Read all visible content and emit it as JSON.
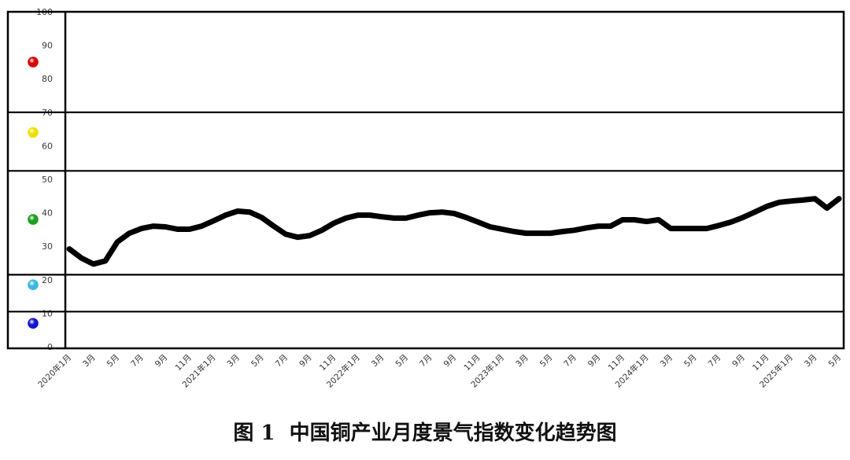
{
  "chart_data": {
    "type": "line",
    "title": "图 1  中国铜产业月度景气指数变化趋势图",
    "xlabel": "",
    "ylabel": "",
    "ylim": [
      0,
      100
    ],
    "y_ticks": [
      0,
      10,
      20,
      30,
      40,
      50,
      60,
      70,
      80,
      90,
      100
    ],
    "grid": false,
    "categories": [
      "2020年1月",
      "",
      "3月",
      "",
      "5月",
      "",
      "7月",
      "",
      "9月",
      "",
      "11月",
      "",
      "2021年1月",
      "",
      "3月",
      "",
      "5月",
      "",
      "7月",
      "",
      "9月",
      "",
      "11月",
      "",
      "2022年1月",
      "",
      "3月",
      "",
      "5月",
      "",
      "7月",
      "",
      "9月",
      "",
      "11月",
      "",
      "2023年1月",
      "",
      "3月",
      "",
      "5月",
      "",
      "7月",
      "",
      "9月",
      "",
      "11月",
      "",
      "2024年1月",
      "",
      "3月",
      "",
      "5月",
      "",
      "7月",
      "",
      "9月",
      "",
      "11月",
      "",
      "2025年1月",
      "",
      "3月",
      "",
      "5月"
    ],
    "series": [
      {
        "color": "#000000",
        "values": [
          29.2,
          26.5,
          24.7,
          25.6,
          31.3,
          33.9,
          35.3,
          36.0,
          35.8,
          35.1,
          35.1,
          36.0,
          37.6,
          39.3,
          40.5,
          40.2,
          38.6,
          36.0,
          33.6,
          32.7,
          33.2,
          34.8,
          36.9,
          38.4,
          39.3,
          39.3,
          38.8,
          38.4,
          38.4,
          39.3,
          40.0,
          40.2,
          39.8,
          38.6,
          37.2,
          35.8,
          35.1,
          34.4,
          33.9,
          33.9,
          33.9,
          34.4,
          34.8,
          35.5,
          36.0,
          36.0,
          37.9,
          37.9,
          37.4,
          37.9,
          35.3,
          35.3,
          35.3,
          35.3,
          36.2,
          37.2,
          38.6,
          40.2,
          41.9,
          43.1,
          43.5,
          43.8,
          44.2,
          41.4,
          44.2
        ]
      }
    ],
    "zone_lines": [
      70,
      52.5,
      21.5,
      10.5
    ],
    "zone_markers": [
      {
        "value": 85,
        "color": "#d80000"
      },
      {
        "value": 64,
        "color": "#f0e000"
      },
      {
        "value": 38,
        "color": "#1e9e1e"
      },
      {
        "value": 18.5,
        "color": "#3cb8e0"
      },
      {
        "value": 7,
        "color": "#1414d2"
      }
    ]
  }
}
